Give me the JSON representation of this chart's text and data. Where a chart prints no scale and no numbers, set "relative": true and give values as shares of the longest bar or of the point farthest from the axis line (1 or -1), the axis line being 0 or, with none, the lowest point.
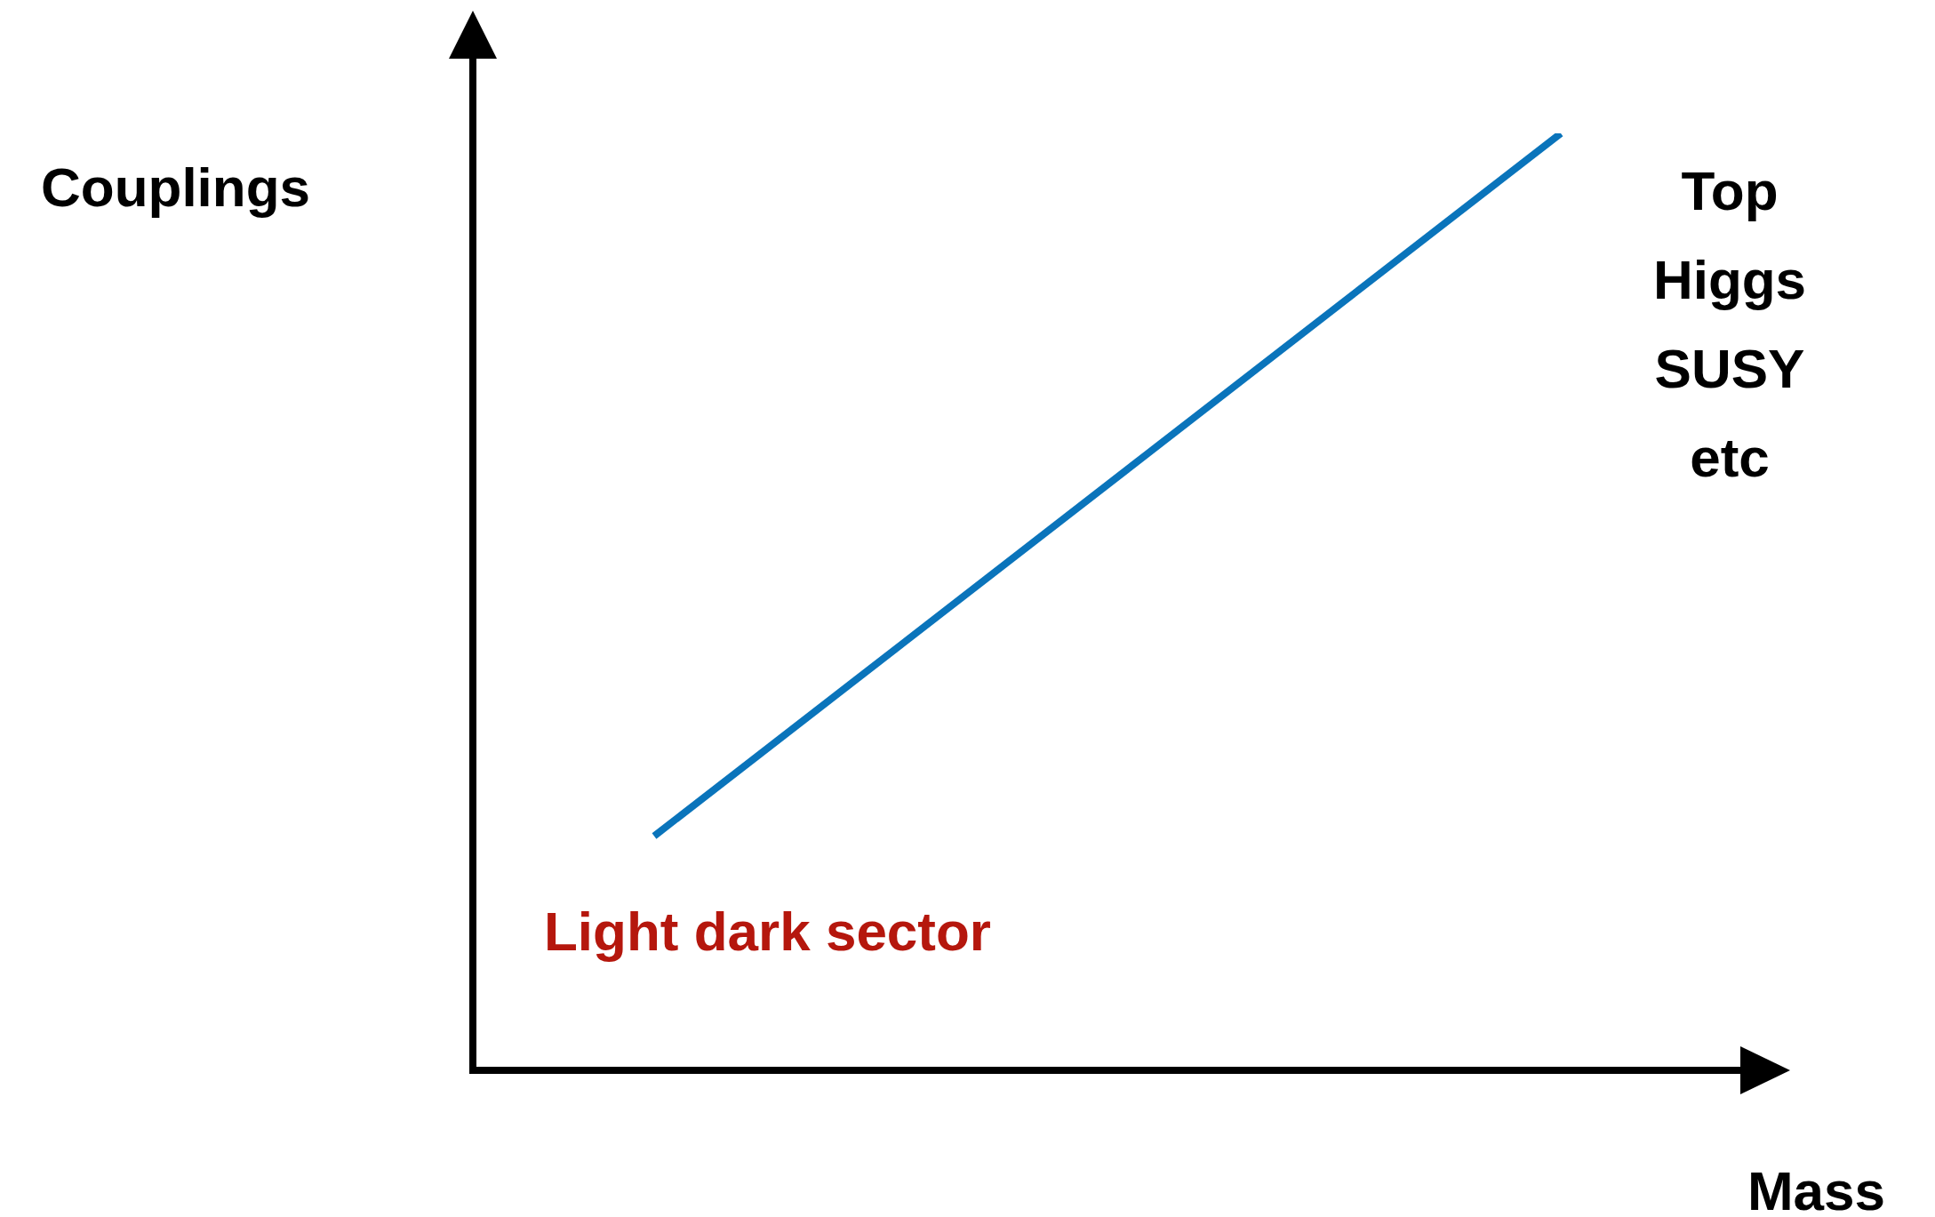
{
  "chart_data": {
    "type": "line",
    "relative": true,
    "xlabel": "Mass",
    "ylabel": "Couplings",
    "categories": [
      null,
      null,
      null,
      null,
      null,
      null,
      null,
      null
    ],
    "series": [
      {
        "color": "#0a74bb",
        "values": [
          null,
          0.25,
          null,
          null,
          null,
          null,
          1,
          null
        ]
      }
    ],
    "annotations": [
      "Top\nHiggs\nSUSY\netc",
      "Light dark sector"
    ]
  }
}
